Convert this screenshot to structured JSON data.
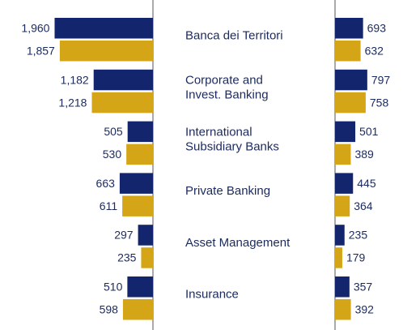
{
  "chart_data": [
    {
      "type": "bar",
      "orientation": "left",
      "categories": [
        "Banca dei Territori",
        "Corporate and\nInvest. Banking",
        "International\nSubsidiary Banks",
        "Private Banking",
        "Asset Management",
        "Insurance"
      ],
      "xlim": [
        0,
        2000
      ],
      "series": [
        {
          "color": "#13266d",
          "values": [
            1960,
            1182,
            505,
            663,
            297,
            510
          ],
          "value_labels": [
            "1,960",
            "1,182",
            "505",
            "663",
            "297",
            "510"
          ]
        },
        {
          "color": "#d4a617",
          "values": [
            1857,
            1218,
            530,
            611,
            235,
            598
          ],
          "value_labels": [
            "1,857",
            "1,218",
            "530",
            "611",
            "235",
            "598"
          ]
        }
      ]
    },
    {
      "type": "bar",
      "orientation": "right",
      "xlim": [
        0,
        1000
      ],
      "series": [
        {
          "color": "#13266d",
          "values": [
            693,
            797,
            501,
            445,
            235,
            357
          ]
        },
        {
          "color": "#d4a617",
          "values": [
            632,
            758,
            389,
            364,
            179,
            392
          ]
        }
      ]
    }
  ]
}
